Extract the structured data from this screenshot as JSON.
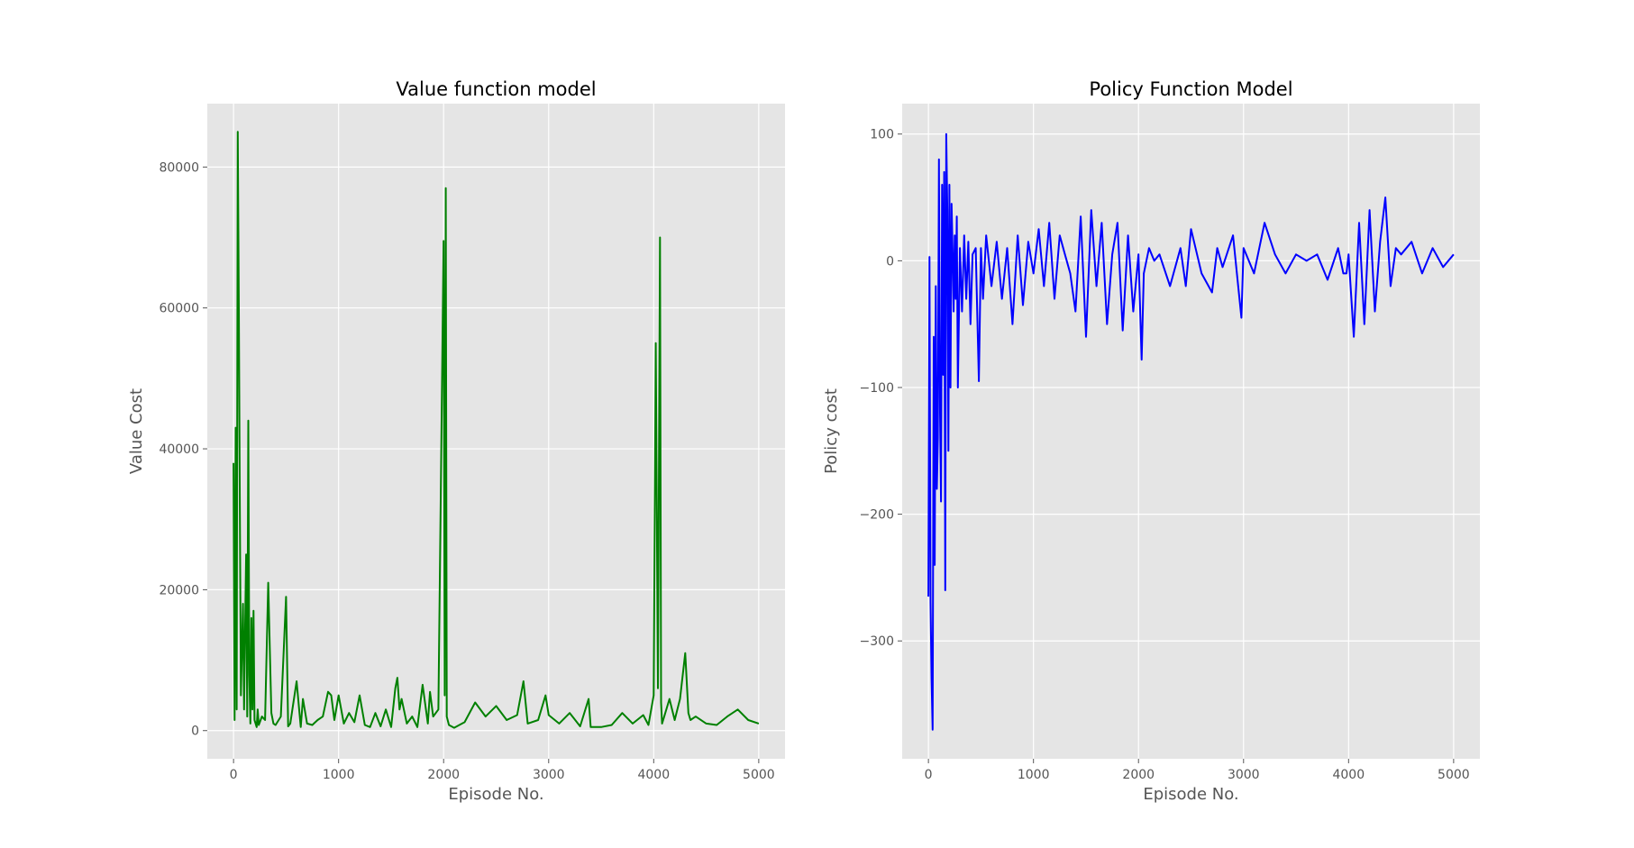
{
  "chart_data": [
    {
      "type": "line",
      "title": "Value function model",
      "xlabel": "Episode No.",
      "ylabel": "Value Cost",
      "xlim": [
        -250,
        5250
      ],
      "ylim": [
        -4000,
        89000
      ],
      "xticks": [
        0,
        1000,
        2000,
        3000,
        4000,
        5000
      ],
      "xtick_labels": [
        "0",
        "1000",
        "2000",
        "3000",
        "4000",
        "5000"
      ],
      "yticks": [
        0,
        20000,
        40000,
        60000,
        80000
      ],
      "ytick_labels": [
        "0",
        "20000",
        "40000",
        "60000",
        "80000"
      ],
      "grid": true,
      "legend": "none",
      "series": [
        {
          "color": "#008000",
          "x": [
            0,
            10,
            20,
            30,
            40,
            50,
            60,
            70,
            80,
            90,
            100,
            110,
            120,
            130,
            140,
            150,
            160,
            170,
            180,
            190,
            200,
            210,
            220,
            230,
            240,
            250,
            270,
            300,
            330,
            360,
            380,
            400,
            450,
            500,
            520,
            540,
            560,
            600,
            640,
            660,
            700,
            750,
            800,
            850,
            900,
            930,
            960,
            1000,
            1050,
            1100,
            1150,
            1200,
            1250,
            1300,
            1350,
            1400,
            1450,
            1500,
            1540,
            1560,
            1580,
            1600,
            1650,
            1700,
            1750,
            1800,
            1850,
            1870,
            1900,
            1950,
            2000,
            2010,
            2020,
            2030,
            2050,
            2100,
            2200,
            2300,
            2400,
            2500,
            2600,
            2700,
            2760,
            2800,
            2900,
            2970,
            3000,
            3100,
            3200,
            3300,
            3380,
            3400,
            3500,
            3600,
            3700,
            3800,
            3900,
            3950,
            4000,
            4020,
            4040,
            4060,
            4070,
            4080,
            4100,
            4150,
            4200,
            4250,
            4300,
            4330,
            4350,
            4400,
            4500,
            4600,
            4700,
            4800,
            4900,
            5000
          ],
          "y": [
            38000,
            1500,
            43000,
            3000,
            85000,
            60000,
            32000,
            5000,
            12000,
            18000,
            3000,
            15000,
            25000,
            2000,
            44000,
            8000,
            1000,
            16000,
            3000,
            17000,
            1500,
            1000,
            500,
            3000,
            800,
            1200,
            2000,
            1500,
            21000,
            2500,
            1000,
            800,
            2000,
            19000,
            600,
            1000,
            3000,
            7000,
            500,
            4500,
            1000,
            800,
            1500,
            2000,
            5500,
            5000,
            1500,
            5000,
            1000,
            2500,
            1200,
            5000,
            800,
            500,
            2500,
            600,
            3000,
            500,
            6000,
            7500,
            3000,
            4500,
            1000,
            2000,
            500,
            6500,
            1000,
            5500,
            2000,
            3000,
            69500,
            5000,
            77000,
            2000,
            800,
            400,
            1200,
            4000,
            2000,
            3500,
            1500,
            2200,
            7000,
            1000,
            1500,
            5000,
            2200,
            1000,
            2500,
            600,
            4500,
            500,
            500,
            800,
            2500,
            1000,
            2200,
            800,
            5000,
            55000,
            6000,
            70000,
            4000,
            1000,
            2000,
            4500,
            1500,
            4500,
            11000,
            2500,
            1500,
            2000,
            1000,
            800,
            2000,
            3000,
            1500,
            1000
          ]
        }
      ]
    },
    {
      "type": "line",
      "title": "Policy Function Model",
      "xlabel": "Episode No.",
      "ylabel": "Policy cost",
      "xlim": [
        -250,
        5250
      ],
      "ylim": [
        -393,
        124
      ],
      "xticks": [
        0,
        1000,
        2000,
        3000,
        4000,
        5000
      ],
      "xtick_labels": [
        "0",
        "1000",
        "2000",
        "3000",
        "4000",
        "5000"
      ],
      "yticks": [
        -300,
        -200,
        -100,
        0,
        100
      ],
      "ytick_labels": [
        "−300",
        "−200",
        "−100",
        "0",
        "100"
      ],
      "grid": true,
      "legend": "none",
      "series": [
        {
          "color": "#0000ff",
          "x": [
            0,
            10,
            20,
            30,
            40,
            50,
            60,
            70,
            80,
            90,
            100,
            110,
            120,
            130,
            140,
            150,
            160,
            170,
            180,
            190,
            200,
            210,
            220,
            230,
            240,
            250,
            260,
            270,
            280,
            300,
            320,
            340,
            360,
            380,
            400,
            420,
            450,
            480,
            500,
            520,
            550,
            600,
            650,
            700,
            750,
            800,
            850,
            900,
            950,
            1000,
            1050,
            1100,
            1150,
            1200,
            1250,
            1300,
            1350,
            1400,
            1450,
            1500,
            1550,
            1600,
            1650,
            1700,
            1750,
            1800,
            1850,
            1900,
            1950,
            2000,
            2030,
            2050,
            2100,
            2150,
            2200,
            2300,
            2400,
            2450,
            2500,
            2600,
            2700,
            2750,
            2800,
            2900,
            2980,
            3000,
            3100,
            3200,
            3300,
            3400,
            3500,
            3600,
            3700,
            3800,
            3900,
            3950,
            3980,
            4000,
            4050,
            4100,
            4150,
            4200,
            4250,
            4300,
            4350,
            4400,
            4450,
            4500,
            4600,
            4700,
            4800,
            4900,
            5000
          ],
          "y": [
            -265,
            3,
            -270,
            -330,
            -370,
            -60,
            -240,
            -20,
            -180,
            -140,
            80,
            -120,
            -190,
            60,
            -90,
            70,
            -260,
            100,
            40,
            -150,
            60,
            -100,
            45,
            10,
            -40,
            20,
            -30,
            35,
            -100,
            10,
            -40,
            20,
            -30,
            15,
            -50,
            5,
            10,
            -95,
            10,
            -30,
            20,
            -20,
            15,
            -30,
            10,
            -50,
            20,
            -35,
            15,
            -10,
            25,
            -20,
            30,
            -30,
            20,
            5,
            -10,
            -40,
            35,
            -60,
            40,
            -20,
            30,
            -50,
            5,
            30,
            -55,
            20,
            -40,
            5,
            -78,
            -10,
            10,
            0,
            5,
            -20,
            10,
            -20,
            25,
            -10,
            -25,
            10,
            -5,
            20,
            -45,
            10,
            -10,
            30,
            5,
            -10,
            5,
            0,
            5,
            -15,
            10,
            -10,
            -10,
            5,
            -60,
            30,
            -50,
            40,
            -40,
            15,
            50,
            -20,
            10,
            5,
            15,
            -10,
            10,
            -5,
            5
          ]
        }
      ]
    }
  ]
}
